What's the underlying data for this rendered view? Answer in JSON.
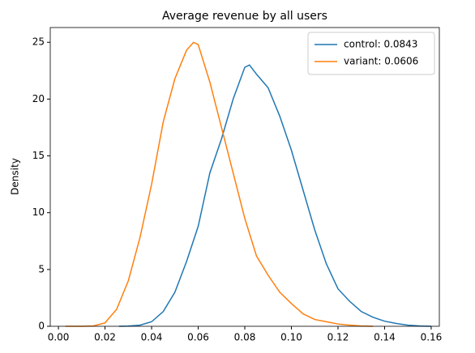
{
  "chart_data": {
    "type": "line",
    "title": "Average revenue by all users",
    "ylabel": "Density",
    "xlim": [
      -0.0035,
      0.1635
    ],
    "ylim": [
      0,
      26.3
    ],
    "xticks": [
      {
        "value": 0,
        "label": "0.00"
      },
      0.02,
      0.04,
      0.06,
      0.08,
      {
        "value": 0.1,
        "label": "0.10"
      },
      0.12,
      0.14,
      0.16
    ],
    "yticks": [
      0,
      5,
      10,
      15,
      20,
      25
    ],
    "legend": "upper right",
    "grid": false,
    "series": [
      {
        "name": "control: 0.0843",
        "color": "#1f77b4",
        "x": [
          0.026,
          0.03,
          0.035,
          0.04,
          0.045,
          0.05,
          0.055,
          0.06,
          0.065,
          0.07,
          0.075,
          0.08,
          0.082,
          0.085,
          0.09,
          0.095,
          0.1,
          0.105,
          0.11,
          0.115,
          0.12,
          0.125,
          0.13,
          0.135,
          0.14,
          0.145,
          0.15,
          0.155,
          0.16
        ],
        "values": [
          0,
          0.02,
          0.1,
          0.4,
          1.3,
          3.0,
          5.7,
          8.8,
          13.5,
          16.5,
          20,
          22.8,
          23,
          22.2,
          21,
          18.5,
          15.5,
          12,
          8.5,
          5.5,
          3.3,
          2.2,
          1.3,
          0.8,
          0.45,
          0.25,
          0.1,
          0.03,
          0
        ]
      },
      {
        "name": "variant: 0.0606",
        "color": "#ff7f0e",
        "x": [
          0.003,
          0.01,
          0.015,
          0.02,
          0.025,
          0.03,
          0.035,
          0.04,
          0.045,
          0.05,
          0.055,
          0.058,
          0.06,
          0.065,
          0.07,
          0.075,
          0.08,
          0.085,
          0.09,
          0.095,
          0.1,
          0.105,
          0.11,
          0.115,
          0.12,
          0.125,
          0.13,
          0.135
        ],
        "values": [
          0,
          0,
          0.03,
          0.3,
          1.5,
          4,
          7.8,
          12.5,
          18,
          21.8,
          24.3,
          25,
          24.8,
          21.5,
          17.5,
          13.5,
          9.5,
          6.2,
          4.5,
          3,
          2,
          1.1,
          0.6,
          0.4,
          0.2,
          0.1,
          0.03,
          0
        ]
      }
    ]
  }
}
